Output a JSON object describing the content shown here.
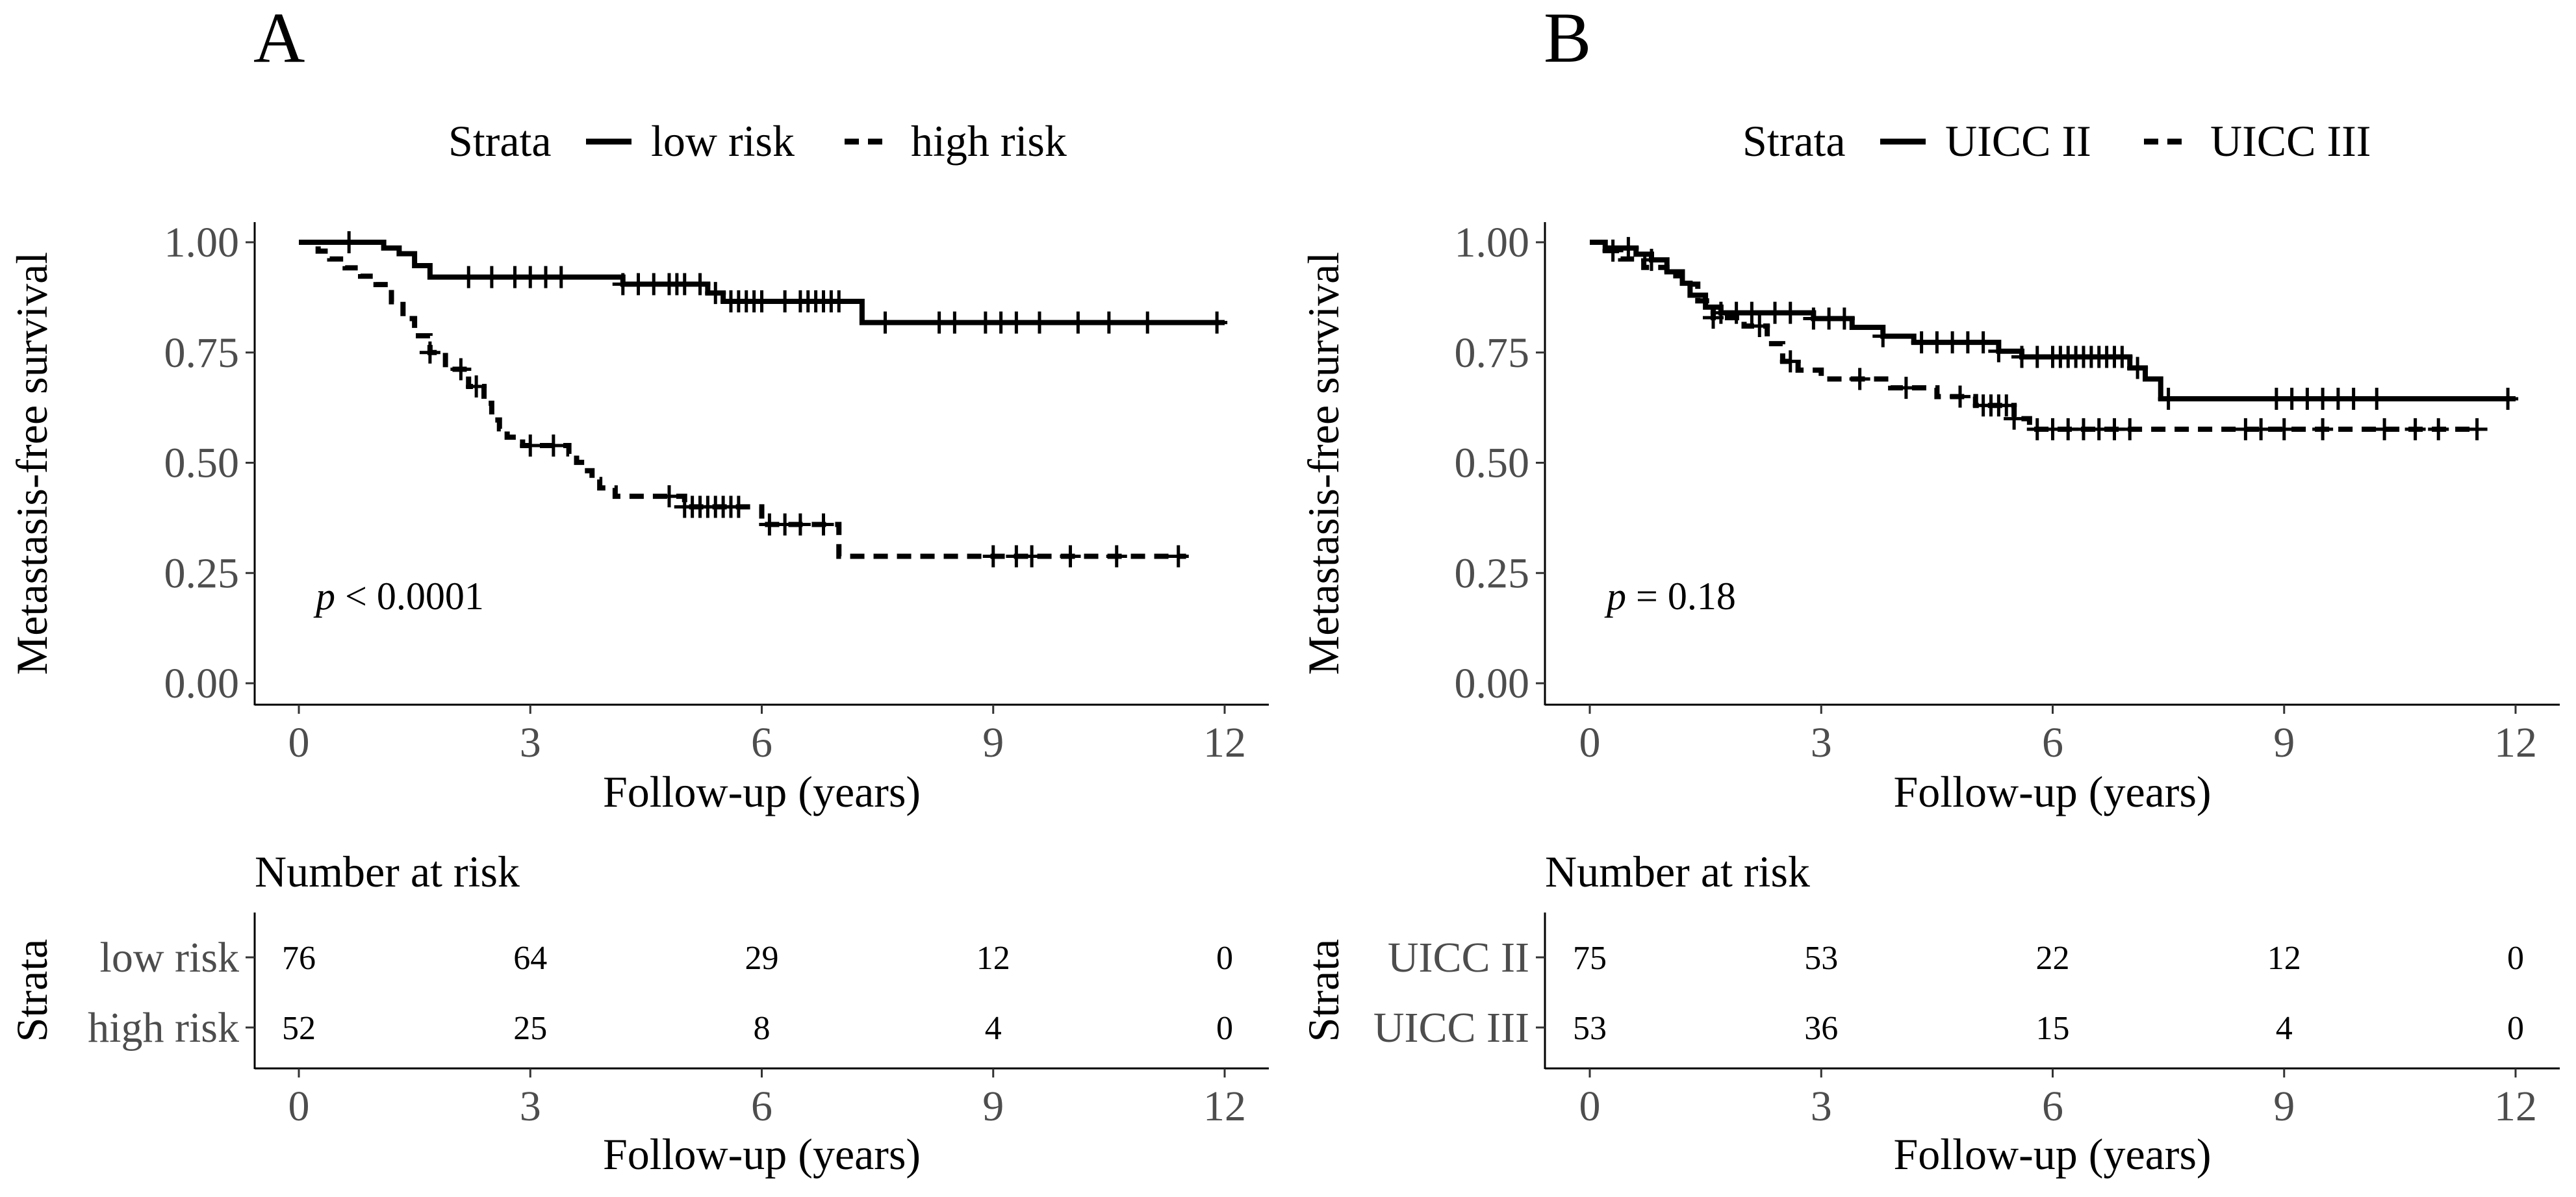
{
  "chart_data": [
    {
      "type": "line",
      "subtype": "kaplan-meier",
      "panel_label": "A",
      "legend_title": "Strata",
      "legend_position": "top",
      "ylabel": "Metastasis-free survival",
      "xlabel": "Follow-up (years)",
      "xlim": [
        0,
        12
      ],
      "ylim": [
        0,
        1
      ],
      "xticks": [
        "0",
        "3",
        "6",
        "9",
        "12"
      ],
      "yticks": [
        "0.00",
        "0.25",
        "0.50",
        "0.75",
        "1.00"
      ],
      "pvalue": {
        "symbol": "p",
        "text": " < 0.0001"
      },
      "series": [
        {
          "name": "low risk",
          "dash": "solid",
          "steps": [
            [
              0,
              1.0
            ],
            [
              1.1,
              0.987
            ],
            [
              1.3,
              0.974
            ],
            [
              1.5,
              0.947
            ],
            [
              1.7,
              0.921
            ],
            [
              4.2,
              0.905
            ],
            [
              5.3,
              0.885
            ],
            [
              5.5,
              0.866
            ],
            [
              7.3,
              0.818
            ],
            [
              12,
              0.818
            ]
          ],
          "censor_x": [
            0.65,
            2.2,
            2.5,
            2.8,
            3.0,
            3.2,
            3.4,
            4.2,
            4.4,
            4.6,
            4.8,
            4.9,
            5.0,
            5.2,
            5.4,
            5.6,
            5.7,
            5.8,
            5.9,
            6.0,
            6.3,
            6.5,
            6.6,
            6.7,
            6.8,
            6.9,
            7.0,
            7.6,
            8.3,
            8.5,
            8.9,
            9.1,
            9.3,
            9.6,
            10.1,
            10.5,
            11.0,
            11.9
          ]
        },
        {
          "name": "high risk",
          "dash": "dashed",
          "steps": [
            [
              0,
              1.0
            ],
            [
              0.25,
              0.98
            ],
            [
              0.4,
              0.962
            ],
            [
              0.6,
              0.942
            ],
            [
              0.8,
              0.923
            ],
            [
              1.0,
              0.904
            ],
            [
              1.2,
              0.865
            ],
            [
              1.35,
              0.827
            ],
            [
              1.5,
              0.788
            ],
            [
              1.7,
              0.75
            ],
            [
              1.9,
              0.712
            ],
            [
              2.2,
              0.673
            ],
            [
              2.4,
              0.635
            ],
            [
              2.5,
              0.597
            ],
            [
              2.6,
              0.577
            ],
            [
              2.7,
              0.558
            ],
            [
              2.9,
              0.539
            ],
            [
              3.5,
              0.52
            ],
            [
              3.6,
              0.501
            ],
            [
              3.7,
              0.482
            ],
            [
              3.8,
              0.462
            ],
            [
              3.9,
              0.443
            ],
            [
              4.1,
              0.424
            ],
            [
              5.0,
              0.4
            ],
            [
              6.0,
              0.36
            ],
            [
              7.0,
              0.288
            ],
            [
              11.5,
              0.288
            ]
          ],
          "censor_x": [
            1.7,
            2.1,
            2.3,
            3.0,
            3.3,
            4.8,
            5.0,
            5.1,
            5.2,
            5.3,
            5.4,
            5.5,
            5.6,
            5.7,
            6.1,
            6.3,
            6.5,
            6.8,
            9.0,
            9.3,
            9.5,
            10.0,
            10.6,
            11.4
          ]
        }
      ],
      "risk_table": {
        "title": "Number at risk",
        "ylabel": "Strata",
        "xlabel": "Follow-up (years)",
        "rows": [
          {
            "strata": "low risk",
            "counts": [
              "76",
              "64",
              "29",
              "12",
              "0"
            ]
          },
          {
            "strata": "high risk",
            "counts": [
              "52",
              "25",
              "8",
              "4",
              "0"
            ]
          }
        ]
      }
    },
    {
      "type": "line",
      "subtype": "kaplan-meier",
      "panel_label": "B",
      "legend_title": "Strata",
      "legend_position": "top",
      "ylabel": "Metastasis-free survival",
      "xlabel": "Follow-up (years)",
      "xlim": [
        0,
        12
      ],
      "ylim": [
        0,
        1
      ],
      "xticks": [
        "0",
        "3",
        "6",
        "9",
        "12"
      ],
      "yticks": [
        "0.00",
        "0.25",
        "0.50",
        "0.75",
        "1.00"
      ],
      "pvalue": {
        "symbol": "p",
        "text": " = 0.18"
      },
      "series": [
        {
          "name": "UICC II",
          "dash": "solid",
          "steps": [
            [
              0,
              1.0
            ],
            [
              0.2,
              0.987
            ],
            [
              0.6,
              0.973
            ],
            [
              0.8,
              0.96
            ],
            [
              1.0,
              0.933
            ],
            [
              1.2,
              0.907
            ],
            [
              1.3,
              0.88
            ],
            [
              1.5,
              0.853
            ],
            [
              1.7,
              0.84
            ],
            [
              2.9,
              0.827
            ],
            [
              3.4,
              0.807
            ],
            [
              3.8,
              0.787
            ],
            [
              4.2,
              0.773
            ],
            [
              5.3,
              0.753
            ],
            [
              5.6,
              0.74
            ],
            [
              7.0,
              0.715
            ],
            [
              7.2,
              0.69
            ],
            [
              7.4,
              0.645
            ],
            [
              12,
              0.645
            ]
          ],
          "censor_x": [
            0.5,
            0.8,
            1.7,
            1.9,
            2.1,
            2.4,
            2.6,
            2.9,
            3.1,
            3.3,
            3.8,
            4.3,
            4.5,
            4.7,
            4.9,
            5.1,
            5.3,
            5.6,
            5.8,
            6.0,
            6.1,
            6.2,
            6.3,
            6.4,
            6.5,
            6.6,
            6.7,
            6.8,
            6.9,
            7.1,
            7.5,
            8.9,
            9.1,
            9.3,
            9.5,
            9.7,
            9.9,
            10.2,
            11.9
          ]
        },
        {
          "name": "UICC III",
          "dash": "dashed",
          "steps": [
            [
              0,
              1.0
            ],
            [
              0.2,
              0.981
            ],
            [
              0.4,
              0.962
            ],
            [
              0.7,
              0.943
            ],
            [
              1.0,
              0.924
            ],
            [
              1.2,
              0.905
            ],
            [
              1.4,
              0.867
            ],
            [
              1.6,
              0.829
            ],
            [
              2.0,
              0.81
            ],
            [
              2.3,
              0.77
            ],
            [
              2.5,
              0.73
            ],
            [
              2.7,
              0.71
            ],
            [
              3.0,
              0.69
            ],
            [
              3.9,
              0.67
            ],
            [
              4.5,
              0.65
            ],
            [
              5.0,
              0.63
            ],
            [
              5.5,
              0.6
            ],
            [
              5.7,
              0.576
            ],
            [
              11.5,
              0.576
            ]
          ],
          "censor_x": [
            0.3,
            1.6,
            2.2,
            2.6,
            3.5,
            4.1,
            4.8,
            5.1,
            5.2,
            5.3,
            5.4,
            5.5,
            5.8,
            6.0,
            6.2,
            6.4,
            6.6,
            6.8,
            7.0,
            8.5,
            8.7,
            9.0,
            9.5,
            10.3,
            10.7,
            11.0,
            11.5
          ]
        }
      ],
      "risk_table": {
        "title": "Number at risk",
        "ylabel": "Strata",
        "xlabel": "Follow-up (years)",
        "rows": [
          {
            "strata": "UICC II",
            "counts": [
              "75",
              "53",
              "22",
              "12",
              "0"
            ]
          },
          {
            "strata": "UICC III",
            "counts": [
              "53",
              "36",
              "15",
              "4",
              "0"
            ]
          }
        ]
      }
    }
  ]
}
